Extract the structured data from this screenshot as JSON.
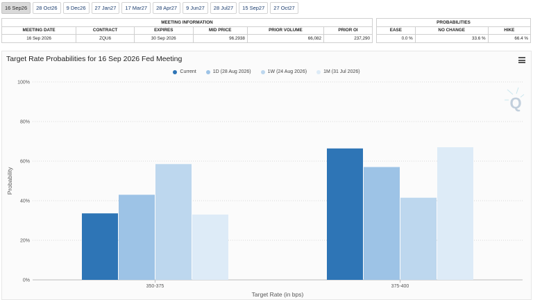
{
  "tabs": [
    {
      "label": "16 Sep26",
      "active": true
    },
    {
      "label": "28 Oct26",
      "active": false
    },
    {
      "label": "9 Dec26",
      "active": false
    },
    {
      "label": "27 Jan27",
      "active": false
    },
    {
      "label": "17 Mar27",
      "active": false
    },
    {
      "label": "28 Apr27",
      "active": false
    },
    {
      "label": "9 Jun27",
      "active": false
    },
    {
      "label": "28 Jul27",
      "active": false
    },
    {
      "label": "15 Sep27",
      "active": false
    },
    {
      "label": "27 Oct27",
      "active": false
    }
  ],
  "meeting_info": {
    "title": "MEETING INFORMATION",
    "headers": [
      "MEETING DATE",
      "CONTRACT",
      "EXPIRES",
      "MID PRICE",
      "PRIOR VOLUME",
      "PRIOR OI"
    ],
    "values": [
      "16 Sep 2026",
      "ZQU6",
      "30 Sep 2026",
      "96.2938",
      "66,082",
      "237,290"
    ]
  },
  "probabilities": {
    "title": "PROBABILITIES",
    "headers": [
      "EASE",
      "NO CHANGE",
      "HIKE"
    ],
    "values": [
      "0.0 %",
      "33.6 %",
      "66.4 %"
    ]
  },
  "chart_title": "Target Rate Probabilities for 16 Sep 2026 Fed Meeting",
  "icons": {
    "menu": "hamburger-menu-icon",
    "watermark": "q-logo-watermark"
  },
  "chart_data": {
    "type": "bar",
    "categories": [
      "350-375",
      "375-400"
    ],
    "series": [
      {
        "name": "Current",
        "color": "#2e75b6",
        "values": [
          33.6,
          66.4
        ]
      },
      {
        "name": "1D (28 Aug 2026)",
        "color": "#9dc3e6",
        "values": [
          43.0,
          57.0
        ]
      },
      {
        "name": "1W (24 Aug 2026)",
        "color": "#bdd7ee",
        "values": [
          58.5,
          41.5
        ]
      },
      {
        "name": "1M (31 Jul 2026)",
        "color": "#ddebf7",
        "values": [
          33.0,
          67.0
        ]
      }
    ],
    "xlabel": "Target Rate (in bps)",
    "ylabel": "Probability",
    "ylim": [
      0,
      100
    ],
    "yticks": [
      "0%",
      "20%",
      "40%",
      "60%",
      "80%",
      "100%"
    ],
    "grid": true,
    "legend_position": "top-center"
  }
}
